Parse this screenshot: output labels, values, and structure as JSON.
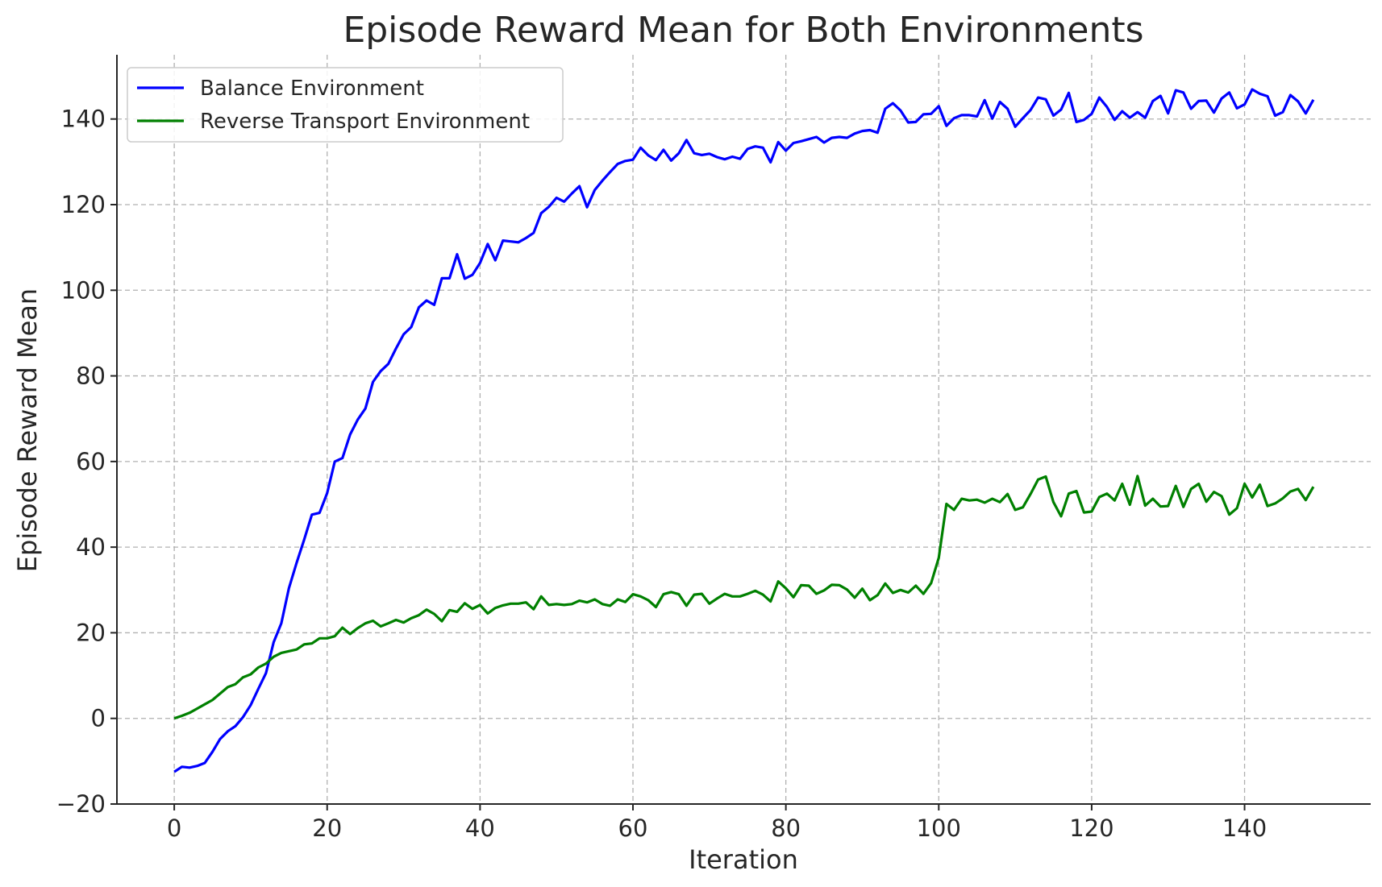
{
  "chart_data": {
    "type": "line",
    "title": "Episode Reward Mean for Both Environments",
    "xlabel": "Iteration",
    "ylabel": "Episode Reward Mean",
    "xlim": [
      -7.5,
      156.5
    ],
    "ylim": [
      -20,
      155
    ],
    "xticks": [
      0,
      20,
      40,
      60,
      80,
      100,
      120,
      140
    ],
    "yticks": [
      -20,
      0,
      20,
      40,
      60,
      80,
      100,
      120,
      140
    ],
    "xtick_labels": [
      "0",
      "20",
      "40",
      "60",
      "80",
      "100",
      "120",
      "140"
    ],
    "ytick_labels": [
      "−20",
      "0",
      "20",
      "40",
      "60",
      "80",
      "100",
      "120",
      "140"
    ],
    "grid": true,
    "legend_position": "top-left",
    "series": [
      {
        "name": "Balance Environment",
        "color": "#0000ff",
        "x": [
          0,
          1,
          2,
          3,
          4,
          5,
          6,
          7,
          8,
          9,
          10,
          11,
          12,
          13,
          14,
          15,
          16,
          17,
          18,
          19,
          20,
          21,
          22,
          23,
          24,
          25,
          26,
          27,
          28,
          29,
          30,
          31,
          32,
          33,
          34,
          35,
          36,
          37,
          38,
          39,
          40,
          41,
          42,
          43,
          44,
          45,
          46,
          47,
          48,
          49,
          50,
          51,
          52,
          53,
          54,
          55,
          56,
          57,
          58,
          59,
          60,
          61,
          62,
          63,
          64,
          65,
          66,
          67,
          68,
          69,
          70,
          71,
          72,
          73,
          74,
          75,
          76,
          77,
          78,
          79,
          80,
          81,
          82,
          83,
          84,
          85,
          86,
          87,
          88,
          89,
          90,
          91,
          92,
          93,
          94,
          95,
          96,
          97,
          98,
          99,
          100,
          101,
          102,
          103,
          104,
          105,
          106,
          107,
          108,
          109,
          110,
          111,
          112,
          113,
          114,
          115,
          116,
          117,
          118,
          119,
          120,
          121,
          122,
          123,
          124,
          125,
          126,
          127,
          128,
          129,
          130,
          131,
          132,
          133,
          134,
          135,
          136,
          137,
          138,
          139,
          140,
          141,
          142,
          143,
          144,
          145,
          146,
          147,
          148,
          149
        ],
        "values": [
          -12.5,
          -11.3,
          -11.5,
          -11.1,
          -10.4,
          -7.8,
          -4.8,
          -3,
          -1.8,
          0.3,
          3.1,
          6.9,
          10.6,
          17.8,
          22.2,
          30.4,
          36.3,
          41.8,
          47.6,
          48,
          52.6,
          60,
          60.8,
          66.3,
          69.8,
          72.4,
          78.6,
          81.1,
          82.8,
          86.4,
          89.7,
          91.4,
          96,
          97.6,
          96.6,
          102.8,
          102.8,
          108.4,
          102.7,
          103.6,
          106.4,
          110.8,
          107,
          111.6,
          111.4,
          111.2,
          112.2,
          113.4,
          118,
          119.5,
          121.6,
          120.7,
          122.6,
          124.3,
          119.4,
          123.4,
          125.6,
          127.6,
          129.5,
          130.2,
          130.5,
          133.3,
          131.5,
          130.4,
          132.8,
          130.3,
          132,
          135.1,
          132,
          131.6,
          131.9,
          131.1,
          130.6,
          131.2,
          130.7,
          133,
          133.6,
          133.3,
          129.9,
          134.6,
          132.6,
          134.4,
          134.8,
          135.3,
          135.8,
          134.5,
          135.6,
          135.8,
          135.6,
          136.6,
          137.2,
          137.4,
          136.8,
          142.4,
          143.7,
          142,
          139.2,
          139.3,
          141.1,
          141.2,
          143,
          138.4,
          140.2,
          140.9,
          140.9,
          140.6,
          144.4,
          140.1,
          144,
          142.4,
          138.2,
          140.2,
          142.1,
          145,
          144.6,
          140.8,
          142.2,
          146.1,
          139.3,
          139.8,
          141.2,
          145,
          142.8,
          139.8,
          141.8,
          140.3,
          141.6,
          140.3,
          144.2,
          145.4,
          141.3,
          146.7,
          146.2,
          142.4,
          144.2,
          144.3,
          141.5,
          144.8,
          146.2,
          142.5,
          143.4,
          146.9,
          145.9,
          145.3,
          140.8,
          141.6,
          145.6,
          144.1,
          141.3,
          144.5
        ]
      },
      {
        "name": "Reverse Transport Environment",
        "color": "#008000",
        "x": [
          0,
          1,
          2,
          3,
          4,
          5,
          6,
          7,
          8,
          9,
          10,
          11,
          12,
          13,
          14,
          15,
          16,
          17,
          18,
          19,
          20,
          21,
          22,
          23,
          24,
          25,
          26,
          27,
          28,
          29,
          30,
          31,
          32,
          33,
          34,
          35,
          36,
          37,
          38,
          39,
          40,
          41,
          42,
          43,
          44,
          45,
          46,
          47,
          48,
          49,
          50,
          51,
          52,
          53,
          54,
          55,
          56,
          57,
          58,
          59,
          60,
          61,
          62,
          63,
          64,
          65,
          66,
          67,
          68,
          69,
          70,
          71,
          72,
          73,
          74,
          75,
          76,
          77,
          78,
          79,
          80,
          81,
          82,
          83,
          84,
          85,
          86,
          87,
          88,
          89,
          90,
          91,
          92,
          93,
          94,
          95,
          96,
          97,
          98,
          99,
          100,
          101,
          102,
          103,
          104,
          105,
          106,
          107,
          108,
          109,
          110,
          111,
          112,
          113,
          114,
          115,
          116,
          117,
          118,
          119,
          120,
          121,
          122,
          123,
          124,
          125,
          126,
          127,
          128,
          129,
          130,
          131,
          132,
          133,
          134,
          135,
          136,
          137,
          138,
          139,
          140,
          141,
          142,
          143,
          144,
          145,
          146,
          147,
          148,
          149
        ],
        "values": [
          0,
          0.6,
          1.3,
          2.3,
          3.3,
          4.3,
          5.8,
          7.3,
          8,
          9.6,
          10.3,
          11.9,
          12.8,
          14.4,
          15.3,
          15.7,
          16.1,
          17.3,
          17.5,
          18.7,
          18.7,
          19.2,
          21.2,
          19.7,
          21.1,
          22.2,
          22.8,
          21.5,
          22.2,
          23,
          22.4,
          23.4,
          24.1,
          25.4,
          24.4,
          22.7,
          25.3,
          24.9,
          26.9,
          25.6,
          26.5,
          24.5,
          25.8,
          26.4,
          26.8,
          26.8,
          27.1,
          25.5,
          28.5,
          26.5,
          26.7,
          26.5,
          26.7,
          27.5,
          27.1,
          27.8,
          26.7,
          26.3,
          27.8,
          27.2,
          29,
          28.5,
          27.6,
          26,
          29,
          29.5,
          29,
          26.3,
          28.9,
          29.1,
          26.8,
          28,
          29.1,
          28.5,
          28.5,
          29.1,
          29.8,
          28.9,
          27.3,
          32,
          30.4,
          28.3,
          31.1,
          31,
          29.1,
          29.9,
          31.2,
          31.1,
          30.1,
          28.2,
          30.3,
          27.6,
          28.8,
          31.5,
          29.3,
          30,
          29.4,
          31,
          29.1,
          31.6,
          37.5,
          50.1,
          48.7,
          51.3,
          50.9,
          51.1,
          50.4,
          51.3,
          50.5,
          52.4,
          48.7,
          49.3,
          52.4,
          55.8,
          56.5,
          50.5,
          47.2,
          52.5,
          53.1,
          48.1,
          48.3,
          51.7,
          52.5,
          50.9,
          54.8,
          49.9,
          56.6,
          49.7,
          51.3,
          49.5,
          49.6,
          54.3,
          49.4,
          53.6,
          54.8,
          50.6,
          52.9,
          51.9,
          47.6,
          49.1,
          54.8,
          51.6,
          54.6,
          49.6,
          50.2,
          51.4,
          53,
          53.6,
          51,
          54.1
        ]
      }
    ]
  }
}
